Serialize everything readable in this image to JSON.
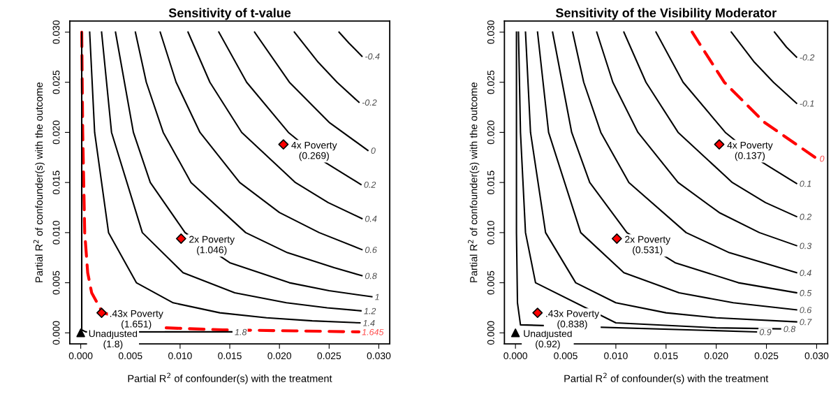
{
  "chart_data": [
    {
      "type": "line",
      "title": "Sensitivity of t-value",
      "xlabel": "Partial R$^{2}$ of confounder(s) with the treatment",
      "ylabel": "Partial R$^{2}$ of confounder(s) with the outcome",
      "xlim": [
        -0.0011,
        0.0311
      ],
      "ylim": [
        -0.0011,
        0.0311
      ],
      "xticks": [
        {
          "value": 0,
          "label": "0.000"
        },
        {
          "value": 0.005,
          "label": "0.005"
        },
        {
          "value": 0.01,
          "label": "0.010"
        },
        {
          "value": 0.015,
          "label": "0.015"
        },
        {
          "value": 0.02,
          "label": "0.020"
        },
        {
          "value": 0.025,
          "label": "0.025"
        },
        {
          "value": 0.03,
          "label": "0.030"
        }
      ],
      "yticks": [
        {
          "value": 0,
          "label": "0.000"
        },
        {
          "value": 0.005,
          "label": "0.005"
        },
        {
          "value": 0.01,
          "label": "0.010"
        },
        {
          "value": 0.015,
          "label": "0.015"
        },
        {
          "value": 0.02,
          "label": "0.020"
        },
        {
          "value": 0.025,
          "label": "0.025"
        },
        {
          "value": 0.03,
          "label": "0.030"
        }
      ],
      "series": [
        {
          "name": "-0.4",
          "color": "#000000",
          "x": [
            0.026,
            0.027,
            0.0283
          ],
          "values": [
            0.03,
            0.0289,
            0.0276
          ]
        },
        {
          "name": "-0.2",
          "color": "#000000",
          "x": [
            0.0215,
            0.0239,
            0.0258,
            0.028
          ],
          "values": [
            0.03,
            0.027,
            0.025,
            0.023
          ]
        },
        {
          "name": "0",
          "color": "#000000",
          "x": [
            0.0175,
            0.021,
            0.025,
            0.0289
          ],
          "values": [
            0.03,
            0.025,
            0.021,
            0.0182
          ]
        },
        {
          "name": "0.2",
          "color": "#000000",
          "x": [
            0.0139,
            0.0167,
            0.0209,
            0.0246,
            0.0282
          ],
          "values": [
            0.03,
            0.025,
            0.02,
            0.017,
            0.0148
          ]
        },
        {
          "name": "0.4",
          "color": "#000000",
          "x": [
            0.0108,
            0.013,
            0.0162,
            0.0216,
            0.0249,
            0.0283
          ],
          "values": [
            0.03,
            0.025,
            0.02,
            0.015,
            0.013,
            0.0114
          ]
        },
        {
          "name": "0.6",
          "color": "#000000",
          "x": [
            0.008,
            0.0096,
            0.012,
            0.016,
            0.02,
            0.024,
            0.0283
          ],
          "values": [
            0.03,
            0.025,
            0.02,
            0.015,
            0.012,
            0.01,
            0.0083
          ]
        },
        {
          "name": "0.8",
          "color": "#000000",
          "x": [
            0.0055,
            0.0066,
            0.0083,
            0.0111,
            0.0166,
            0.0208,
            0.0255,
            0.0283
          ],
          "values": [
            0.03,
            0.025,
            0.02,
            0.015,
            0.01,
            0.008,
            0.0065,
            0.0057
          ]
        },
        {
          "name": "1",
          "color": "#000000",
          "x": [
            0.0035,
            0.0053,
            0.007,
            0.0105,
            0.015,
            0.021,
            0.025,
            0.0293
          ],
          "values": [
            0.03,
            0.02,
            0.015,
            0.01,
            0.007,
            0.005,
            0.0042,
            0.0036
          ]
        },
        {
          "name": "1.2",
          "color": "#000000",
          "x": [
            0.0021,
            0.0031,
            0.0062,
            0.0103,
            0.0155,
            0.0207,
            0.0248,
            0.0282
          ],
          "values": [
            0.03,
            0.02,
            0.01,
            0.006,
            0.004,
            0.003,
            0.0025,
            0.0022
          ]
        },
        {
          "name": "1.4",
          "color": "#000000",
          "x": [
            0.0009,
            0.0014,
            0.0028,
            0.0056,
            0.0093,
            0.014,
            0.0187,
            0.0233,
            0.0281
          ],
          "values": [
            0.03,
            0.02,
            0.01,
            0.005,
            0.003,
            0.002,
            0.0015,
            0.0012,
            0.001
          ]
        },
        {
          "name": "1.645",
          "color": "#ff0000",
          "line_style": "dashed",
          "x": [
            0.0001,
            0.0002,
            0.0004,
            0.0007,
            0.0011,
            0.0022,
            0.0086,
            0.0143,
            0.0215,
            0.028
          ],
          "values": [
            0.03,
            0.02,
            0.01,
            0.006,
            0.004,
            0.002,
            0.0005,
            0.0003,
            0.0002,
            0.0001
          ]
        },
        {
          "name": "1.8",
          "color": "#000000",
          "x": [
            0.0001,
            0.0001,
            0.0005,
            0.0152
          ],
          "values": [
            0.03,
            0.0003,
            0.0001,
            0.0001
          ]
        },
        {
          "type": "scatter",
          "marker": "triangle",
          "color": "#000000",
          "x": [
            0
          ],
          "values": [
            0
          ]
        },
        {
          "type": "scatter",
          "marker": "diamond",
          "color": "#ff0000",
          "x": [
            0.0021,
            0.0101,
            0.0204
          ],
          "values": [
            0.002,
            0.0094,
            0.0188
          ]
        }
      ],
      "annotations": [
        {
          "text": "Unadjusted\n(1.8)",
          "x": 0,
          "y": 0
        },
        {
          "text": ".43x Poverty\n(1.651)",
          "x": 0.0021,
          "y": 0.002
        },
        {
          "text": "2x Poverty\n(1.046)",
          "x": 0.0101,
          "y": 0.0094
        },
        {
          "text": "4x Poverty\n(0.269)",
          "x": 0.0204,
          "y": 0.0188
        }
      ]
    },
    {
      "type": "line",
      "title": "Sensitivity of the Visibility Moderator",
      "xlabel": "Partial R$^{2}$ of confounder(s) with the treatment",
      "ylabel": "Partial R$^{2}$ of confounder(s) with the outcome",
      "xlim": [
        -0.0011,
        0.0311
      ],
      "ylim": [
        -0.0011,
        0.0311
      ],
      "xticks": [
        {
          "value": 0,
          "label": "0.000"
        },
        {
          "value": 0.005,
          "label": "0.005"
        },
        {
          "value": 0.01,
          "label": "0.010"
        },
        {
          "value": 0.015,
          "label": "0.015"
        },
        {
          "value": 0.02,
          "label": "0.020"
        },
        {
          "value": 0.025,
          "label": "0.025"
        },
        {
          "value": 0.03,
          "label": "0.030"
        }
      ],
      "yticks": [
        {
          "value": 0,
          "label": "0.000"
        },
        {
          "value": 0.005,
          "label": "0.005"
        },
        {
          "value": 0.01,
          "label": "0.010"
        },
        {
          "value": 0.015,
          "label": "0.015"
        },
        {
          "value": 0.02,
          "label": "0.020"
        },
        {
          "value": 0.025,
          "label": "0.025"
        },
        {
          "value": 0.03,
          "label": "0.030"
        }
      ],
      "series": [
        {
          "name": "-0.2",
          "color": "#000000",
          "x": [
            0.0258,
            0.027,
            0.028
          ],
          "values": [
            0.03,
            0.0285,
            0.0275
          ]
        },
        {
          "name": "-0.1",
          "color": "#000000",
          "x": [
            0.0215,
            0.0238,
            0.0257,
            0.028
          ],
          "values": [
            0.03,
            0.027,
            0.025,
            0.0229
          ]
        },
        {
          "name": "0",
          "color": "#ff0000",
          "line_style": "dashed",
          "x": [
            0.0176,
            0.0208,
            0.0248,
            0.03
          ],
          "values": [
            0.03,
            0.025,
            0.021,
            0.0174
          ]
        },
        {
          "name": "0.1",
          "color": "#000000",
          "x": [
            0.014,
            0.0167,
            0.0209,
            0.0246,
            0.028
          ],
          "values": [
            0.03,
            0.025,
            0.02,
            0.017,
            0.0149
          ]
        },
        {
          "name": "0.2",
          "color": "#000000",
          "x": [
            0.0108,
            0.013,
            0.0162,
            0.0216,
            0.0249,
            0.028
          ],
          "values": [
            0.03,
            0.025,
            0.02,
            0.015,
            0.013,
            0.0116
          ]
        },
        {
          "name": "0.3",
          "color": "#000000",
          "x": [
            0.0081,
            0.0097,
            0.0122,
            0.0162,
            0.0203,
            0.0243,
            0.028
          ],
          "values": [
            0.03,
            0.025,
            0.02,
            0.015,
            0.012,
            0.01,
            0.0087
          ]
        },
        {
          "name": "0.4",
          "color": "#000000",
          "x": [
            0.0057,
            0.0068,
            0.0085,
            0.0113,
            0.017,
            0.0213,
            0.028
          ],
          "values": [
            0.03,
            0.025,
            0.02,
            0.015,
            0.01,
            0.008,
            0.006
          ]
        },
        {
          "name": "0.5",
          "color": "#000000",
          "x": [
            0.0037,
            0.0056,
            0.0074,
            0.0111,
            0.0159,
            0.0222,
            0.028
          ],
          "values": [
            0.03,
            0.02,
            0.015,
            0.01,
            0.007,
            0.005,
            0.004
          ]
        },
        {
          "name": "0.6",
          "color": "#000000",
          "x": [
            0.0022,
            0.0033,
            0.0065,
            0.0108,
            0.0163,
            0.0217,
            0.028
          ],
          "values": [
            0.03,
            0.02,
            0.01,
            0.006,
            0.004,
            0.003,
            0.0023
          ]
        },
        {
          "name": "0.7",
          "color": "#000000",
          "x": [
            0.001,
            0.0015,
            0.003,
            0.006,
            0.01,
            0.015,
            0.02,
            0.028
          ],
          "values": [
            0.03,
            0.02,
            0.01,
            0.005,
            0.003,
            0.002,
            0.0015,
            0.0011
          ]
        },
        {
          "name": "0.8",
          "color": "#000000",
          "x": [
            0.0003,
            0.0005,
            0.001,
            0.002,
            0.01,
            0.02,
            0.0264
          ],
          "values": [
            0.03,
            0.02,
            0.01,
            0.005,
            0.001,
            0.0005,
            0.0004
          ]
        },
        {
          "name": "0.9",
          "color": "#000000",
          "x": [
            0.0001,
            0.0001,
            0.0002,
            0.0005,
            0.024
          ],
          "values": [
            0.03,
            0.01,
            0.003,
            0.0008,
            0.0001
          ]
        },
        {
          "type": "scatter",
          "marker": "triangle",
          "color": "#000000",
          "x": [
            0
          ],
          "values": [
            0
          ]
        },
        {
          "type": "scatter",
          "marker": "diamond",
          "color": "#ff0000",
          "x": [
            0.0022,
            0.0101,
            0.0203
          ],
          "values": [
            0.002,
            0.0094,
            0.0188
          ]
        }
      ],
      "annotations": [
        {
          "text": "Unadjusted\n(0.92)",
          "x": 0,
          "y": 0
        },
        {
          "text": ".43x Poverty\n(0.838)",
          "x": 0.0022,
          "y": 0.002
        },
        {
          "text": "2x Poverty\n(0.531)",
          "x": 0.0101,
          "y": 0.0094
        },
        {
          "text": "4x Poverty\n(0.137)",
          "x": 0.0203,
          "y": 0.0188
        }
      ]
    }
  ]
}
